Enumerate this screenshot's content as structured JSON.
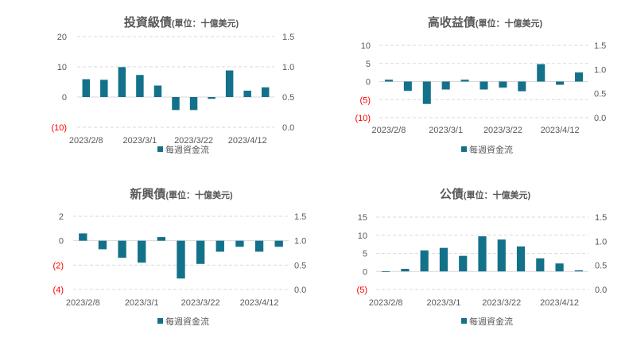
{
  "colors": {
    "bar": "#13718a",
    "negative_label": "#ff0000",
    "text": "#595959"
  },
  "chart_data": [
    {
      "type": "bar",
      "title": "投資級債",
      "subtitle": "(單位：十億美元)",
      "legend": "每週資金流",
      "legend_position": "bottom",
      "x_labels": [
        "2023/2/8",
        "2023/3/1",
        "2023/3/22",
        "2023/4/12"
      ],
      "x_label_indices": [
        0,
        3,
        6,
        9
      ],
      "values": [
        5.9,
        5.7,
        9.9,
        7.3,
        3.8,
        -4.3,
        -4.3,
        -0.6,
        8.8,
        2.1,
        3.2
      ],
      "ylim": [
        -10,
        20
      ],
      "y_ticks": [
        20,
        10,
        0,
        -10
      ],
      "y_tick_labels": [
        "20",
        "10",
        "0",
        "(10)"
      ],
      "y2_tick_labels": [
        "1.5",
        "1.0",
        "0.5",
        "0.0"
      ],
      "grid": true
    },
    {
      "type": "bar",
      "title": "高收益債",
      "subtitle": "(單位：十億美元)",
      "legend": "每週資金流",
      "legend_position": "bottom",
      "x_labels": [
        "2023/2/8",
        "2023/3/1",
        "2023/3/22",
        "2023/4/12"
      ],
      "x_label_indices": [
        0,
        3,
        6,
        9
      ],
      "values": [
        0.5,
        -2.6,
        -6.2,
        -2.2,
        0.5,
        -2.2,
        -1.7,
        -2.7,
        4.8,
        -0.9,
        2.5
      ],
      "ylim": [
        -10,
        10
      ],
      "y_ticks": [
        10,
        5,
        0,
        -5,
        -10
      ],
      "y_tick_labels": [
        "10",
        "5",
        "0",
        "(5)",
        "(10)"
      ],
      "y2_tick_labels": [
        "1.5",
        "1.0",
        "0.5",
        "0.0"
      ],
      "grid": true
    },
    {
      "type": "bar",
      "title": "新興債",
      "subtitle": "(單位：十億美元)",
      "legend": "每週資金流",
      "legend_position": "bottom",
      "x_labels": [
        "2023/2/8",
        "2023/3/1",
        "2023/3/22",
        "2023/4/12"
      ],
      "x_label_indices": [
        0,
        3,
        6,
        9
      ],
      "values": [
        0.6,
        -0.7,
        -1.4,
        -1.8,
        0.3,
        -3.1,
        -1.9,
        -0.9,
        -0.5,
        -0.9,
        -0.5
      ],
      "ylim": [
        -4,
        2
      ],
      "y_ticks": [
        2,
        0,
        -2,
        -4
      ],
      "y_tick_labels": [
        "2",
        "0",
        "(2)",
        "(4)"
      ],
      "y2_tick_labels": [
        "1.5",
        "1.0",
        "0.5",
        "0.0"
      ],
      "grid": true
    },
    {
      "type": "bar",
      "title": "公債",
      "subtitle": "(單位：十億美元)",
      "legend": "每週資金流",
      "legend_position": "bottom",
      "x_labels": [
        "2023/2/8",
        "2023/3/1",
        "2023/3/22",
        "2023/4/12"
      ],
      "x_label_indices": [
        0,
        3,
        6,
        9
      ],
      "values": [
        -0.1,
        0.7,
        5.8,
        6.5,
        4.3,
        9.7,
        8.8,
        6.9,
        3.6,
        2.2,
        0.3
      ],
      "ylim": [
        -5,
        15
      ],
      "y_ticks": [
        15,
        10,
        5,
        0,
        -5
      ],
      "y_tick_labels": [
        "15",
        "10",
        "5",
        "0",
        "(5)"
      ],
      "y2_tick_labels": [
        "1.5",
        "1.0",
        "0.5",
        "0.0"
      ],
      "grid": true
    }
  ]
}
